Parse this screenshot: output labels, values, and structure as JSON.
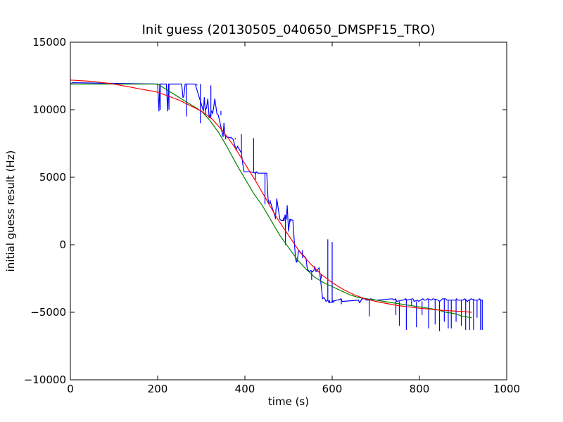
{
  "chart_data": {
    "type": "line",
    "title": "Init guess (20130505_040650_DMSPF15_TRO)",
    "xlabel": "time (s)",
    "ylabel": "initial guess result (Hz)",
    "xlim": [
      0,
      1000
    ],
    "ylim": [
      -10000,
      15000
    ],
    "xticks": [
      0,
      200,
      400,
      600,
      800,
      1000
    ],
    "yticks": [
      -10000,
      -5000,
      0,
      5000,
      10000,
      15000
    ],
    "grid": false,
    "legend": "none",
    "series": [
      {
        "color": "#0000ff",
        "x": [
          0,
          5,
          200,
          203,
          205,
          208,
          220,
          223,
          225,
          228,
          255,
          258,
          260,
          263,
          268,
          271,
          275,
          278,
          283,
          286,
          305,
          307,
          309,
          312,
          315,
          318,
          324,
          326,
          328,
          331,
          336,
          339,
          350,
          352,
          354,
          358,
          370,
          373,
          380,
          383,
          390,
          392,
          395,
          398,
          410,
          413,
          425,
          427,
          429,
          432,
          450,
          453,
          455,
          458,
          470,
          473,
          480,
          483,
          490,
          492,
          495,
          497,
          500,
          503,
          510,
          513,
          516,
          518,
          520,
          523,
          540,
          543,
          548,
          551,
          555,
          558,
          560,
          563,
          570,
          573,
          578,
          581,
          583,
          586,
          590,
          593,
          610,
          613,
          620,
          623,
          660,
          663,
          668,
          671,
          675,
          678,
          685,
          688,
          700,
          703,
          738,
          741,
          745,
          748,
          760,
          763,
          768,
          771,
          785,
          788,
          795,
          798,
          808,
          811,
          815,
          818,
          828,
          831,
          843,
          846,
          850,
          853,
          860,
          863,
          880,
          883,
          885,
          888,
          900,
          903,
          910,
          913,
          915,
          918,
          925,
          928,
          935,
          938,
          940,
          943,
          945
        ],
        "y": [
          11900,
          12000,
          11900,
          9900,
          11900,
          11900,
          11900,
          9900,
          11900,
          11900,
          11900,
          10900,
          11000,
          11900,
          11900,
          11900,
          11900,
          11900,
          11900,
          11900,
          9900,
          10900,
          10000,
          10100,
          10800,
          9400,
          9900,
          9700,
          10100,
          10800,
          9700,
          9600,
          8000,
          9000,
          8100,
          8000,
          7900,
          7800,
          7000,
          7300,
          6900,
          6800,
          6000,
          5400,
          5400,
          5400,
          5300,
          5400,
          5300,
          5300,
          5300,
          3400,
          3000,
          3200,
          2000,
          3400,
          1900,
          1800,
          1800,
          2200,
          1900,
          2900,
          1000,
          1900,
          1800,
          300,
          -1000,
          -1300,
          -1200,
          -400,
          -1000,
          -1800,
          -2000,
          -1900,
          -2000,
          -1900,
          -1600,
          -2000,
          -1700,
          -2500,
          -4000,
          -3900,
          -4000,
          -4200,
          -4100,
          -4300,
          -4100,
          -4100,
          -4000,
          -4200,
          -4100,
          -4300,
          -4000,
          -4000,
          -4000,
          -4100,
          -4100,
          -4000,
          -4100,
          -4100,
          -4000,
          -4100,
          -4000,
          -4200,
          -4100,
          -4100,
          -4000,
          -4100,
          -4000,
          -4200,
          -4100,
          -4200,
          -4000,
          -4100,
          -4100,
          -4000,
          -4100,
          -4000,
          -4100,
          -4200,
          -4100,
          -4000,
          -4000,
          -4100,
          -4100,
          -4100,
          -4000,
          -4100,
          -4100,
          -4000,
          -4200,
          -4100,
          -4100,
          -4000,
          -4100,
          -4100,
          -4100,
          -4000,
          -4100,
          -4100,
          -4100
        ],
        "spikes": [
          {
            "x": 206,
            "y": 10000
          },
          {
            "x": 226,
            "y": 10000
          },
          {
            "x": 266,
            "y": 9500
          },
          {
            "x": 290,
            "y": 11800
          },
          {
            "x": 298,
            "y": 9000
          },
          {
            "x": 310,
            "y": 9700
          },
          {
            "x": 322,
            "y": 11800
          },
          {
            "x": 345,
            "y": 9900
          },
          {
            "x": 356,
            "y": 7800
          },
          {
            "x": 368,
            "y": 7900
          },
          {
            "x": 378,
            "y": 7900
          },
          {
            "x": 392,
            "y": 8200
          },
          {
            "x": 420,
            "y": 7900
          },
          {
            "x": 424,
            "y": 4800
          },
          {
            "x": 436,
            "y": 5300
          },
          {
            "x": 446,
            "y": 3000
          },
          {
            "x": 458,
            "y": 3300
          },
          {
            "x": 470,
            "y": 1900
          },
          {
            "x": 488,
            "y": 2000
          },
          {
            "x": 493,
            "y": 0
          },
          {
            "x": 505,
            "y": 1700
          },
          {
            "x": 518,
            "y": -1100
          },
          {
            "x": 532,
            "y": -1000
          },
          {
            "x": 553,
            "y": -2600
          },
          {
            "x": 567,
            "y": -1900
          },
          {
            "x": 575,
            "y": -2200
          },
          {
            "x": 590,
            "y": 400
          },
          {
            "x": 594,
            "y": -4100
          },
          {
            "x": 600,
            "y": 200
          },
          {
            "x": 602,
            "y": -4100
          },
          {
            "x": 621,
            "y": -4400
          },
          {
            "x": 663,
            "y": -4300
          },
          {
            "x": 685,
            "y": -5300
          },
          {
            "x": 701,
            "y": -4100
          },
          {
            "x": 746,
            "y": -5200
          },
          {
            "x": 754,
            "y": -6000
          },
          {
            "x": 770,
            "y": -6300
          },
          {
            "x": 782,
            "y": -4500
          },
          {
            "x": 793,
            "y": -6100
          },
          {
            "x": 806,
            "y": -5200
          },
          {
            "x": 821,
            "y": -6200
          },
          {
            "x": 828,
            "y": -4100
          },
          {
            "x": 836,
            "y": -5900
          },
          {
            "x": 846,
            "y": -6400
          },
          {
            "x": 857,
            "y": -5700
          },
          {
            "x": 866,
            "y": -6200
          },
          {
            "x": 873,
            "y": -6200
          },
          {
            "x": 884,
            "y": -5700
          },
          {
            "x": 896,
            "y": -6000
          },
          {
            "x": 906,
            "y": -6300
          },
          {
            "x": 915,
            "y": -6300
          },
          {
            "x": 924,
            "y": -6300
          },
          {
            "x": 932,
            "y": -5400
          },
          {
            "x": 940,
            "y": -6300
          },
          {
            "x": 944,
            "y": -6300
          }
        ]
      },
      {
        "color": "#008000",
        "x": [
          0,
          50,
          100,
          150,
          200,
          220,
          240,
          260,
          280,
          300,
          320,
          340,
          360,
          380,
          400,
          420,
          440,
          460,
          480,
          500,
          520,
          540,
          560,
          580,
          600,
          620,
          640,
          660,
          680,
          700,
          720,
          740,
          760,
          780,
          800,
          820,
          840,
          860,
          880,
          900,
          920
        ],
        "y": [
          11900,
          11900,
          11900,
          11900,
          11900,
          11500,
          11100,
          10700,
          10300,
          9900,
          9200,
          8300,
          7200,
          6000,
          4900,
          3800,
          2900,
          1800,
          700,
          -200,
          -1100,
          -1800,
          -2400,
          -2800,
          -3100,
          -3400,
          -3700,
          -3900,
          -4000,
          -4100,
          -4200,
          -4300,
          -4400,
          -4500,
          -4600,
          -4700,
          -4800,
          -5000,
          -5100,
          -5300,
          -5400
        ]
      },
      {
        "color": "#ff0000",
        "x": [
          0,
          50,
          100,
          150,
          200,
          250,
          300,
          325,
          350,
          375,
          400,
          425,
          450,
          475,
          500,
          525,
          550,
          575,
          600,
          625,
          650,
          675,
          700,
          750,
          800,
          850,
          900,
          920
        ],
        "y": [
          12200,
          12100,
          11900,
          11600,
          11300,
          10700,
          9900,
          9300,
          8400,
          7300,
          6000,
          4700,
          3300,
          1900,
          700,
          -500,
          -1400,
          -2200,
          -2800,
          -3300,
          -3700,
          -4000,
          -4200,
          -4500,
          -4700,
          -4850,
          -4950,
          -5000
        ]
      }
    ]
  }
}
